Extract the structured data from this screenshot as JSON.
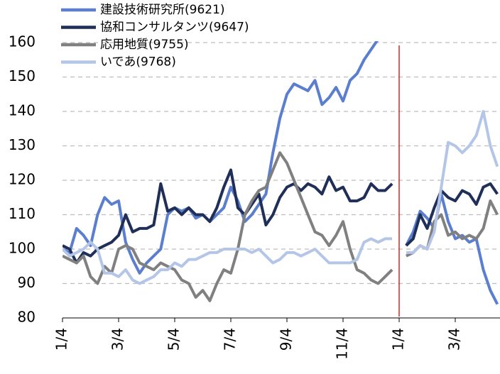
{
  "chart_data": {
    "type": "line",
    "categories": [
      "1/4",
      null,
      null,
      null,
      null,
      null,
      null,
      null,
      "3/4",
      null,
      null,
      null,
      null,
      null,
      null,
      null,
      "5/4",
      null,
      null,
      null,
      null,
      null,
      null,
      null,
      "7/4",
      null,
      null,
      null,
      null,
      null,
      null,
      null,
      "9/4",
      null,
      null,
      null,
      null,
      null,
      null,
      null,
      "11/4",
      null,
      null,
      null,
      null,
      null,
      null,
      null,
      "1/4",
      null,
      null,
      null,
      null,
      null,
      null,
      null,
      "3/4",
      null,
      null,
      null,
      null,
      null,
      null
    ],
    "series": [
      {
        "name": "建設技術研究所(9621)",
        "color": "#5b7fce",
        "values": [
          100,
          99,
          106,
          104,
          101,
          110,
          115,
          113,
          114,
          102,
          97,
          93,
          96,
          98,
          100,
          110,
          112,
          111,
          112,
          109,
          110,
          108,
          110,
          112,
          118,
          114,
          108,
          110,
          113,
          116,
          128,
          138,
          145,
          148,
          147,
          146,
          149,
          142,
          144,
          147,
          143,
          149,
          151,
          155,
          158,
          161,
          163,
          164,
          null,
          101,
          105,
          111,
          109,
          106,
          116,
          108,
          103,
          104,
          102,
          103,
          94,
          88,
          84
        ]
      },
      {
        "name": "協和コンサルタンツ(9647)",
        "color": "#1f2f57",
        "values": [
          101,
          100,
          96,
          99,
          98,
          100,
          101,
          102,
          104,
          110,
          105,
          106,
          106,
          107,
          119,
          111,
          112,
          110,
          112,
          110,
          110,
          108,
          112,
          118,
          123,
          112,
          110,
          113,
          116,
          107,
          110,
          115,
          118,
          119,
          117,
          119,
          118,
          116,
          121,
          117,
          118,
          114,
          114,
          115,
          119,
          117,
          117,
          119,
          null,
          101,
          103,
          110,
          106,
          112,
          117,
          115,
          114,
          117,
          116,
          113,
          118,
          119,
          116
        ]
      },
      {
        "name": "応用地質(9755)",
        "color": "#808080",
        "values": [
          98,
          97,
          96,
          98,
          92,
          90,
          95,
          93,
          100,
          101,
          100,
          96,
          95,
          94,
          96,
          95,
          94,
          91,
          90,
          86,
          88,
          85,
          90,
          94,
          93,
          100,
          110,
          114,
          117,
          118,
          123,
          128,
          125,
          120,
          115,
          110,
          105,
          104,
          101,
          104,
          108,
          100,
          94,
          93,
          91,
          90,
          92,
          94,
          null,
          98,
          99,
          101,
          100,
          108,
          110,
          104,
          105,
          103,
          104,
          103,
          106,
          114,
          110
        ]
      },
      {
        "name": "いであ(9768)",
        "color": "#b4c6e7",
        "values": [
          100,
          98,
          99,
          100,
          102,
          100,
          93,
          93,
          92,
          94,
          91,
          90,
          91,
          92,
          94,
          94,
          96,
          95,
          97,
          97,
          98,
          99,
          99,
          100,
          100,
          100,
          100,
          99,
          100,
          98,
          96,
          97,
          99,
          99,
          98,
          99,
          100,
          98,
          96,
          96,
          96,
          96,
          97,
          102,
          103,
          102,
          103,
          103,
          null,
          99,
          99,
          101,
          100,
          105,
          118,
          131,
          130,
          128,
          130,
          133,
          140,
          130,
          124
        ]
      }
    ],
    "ylim": [
      80,
      160
    ],
    "yticks": [
      80,
      90,
      100,
      110,
      120,
      130,
      140,
      150,
      160
    ],
    "grid": true,
    "legend": "top-left"
  }
}
